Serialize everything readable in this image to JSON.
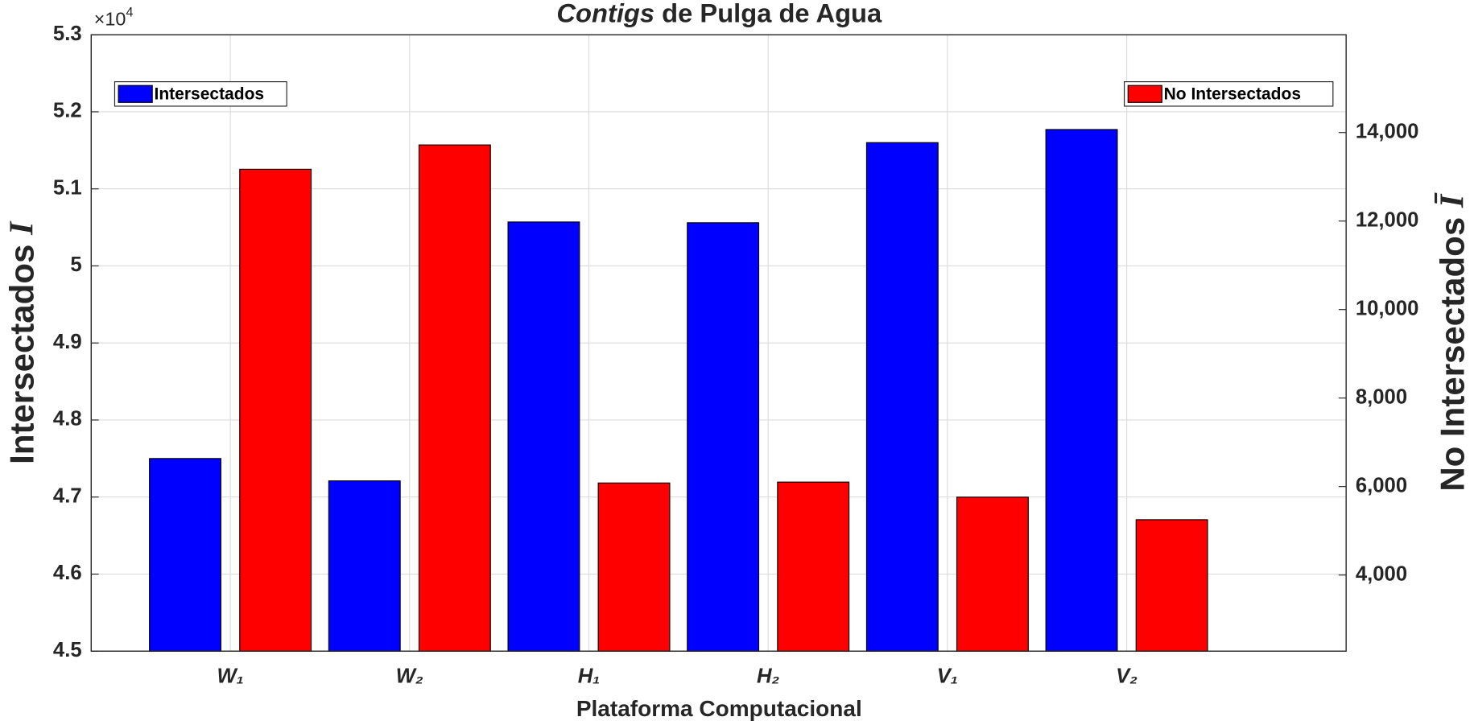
{
  "chart_data": {
    "type": "bar",
    "title_emphasis": "Contigs",
    "title": "de Pulga de Agua",
    "x_label": "Plataforma Computacional",
    "y_label": "Intersectados",
    "y_symbol": "I",
    "y2_label": "No Intersectados",
    "y2_symbol": "Ī",
    "y_exponent": "×10",
    "y_exponent_power": "4",
    "categories": [
      "W₁",
      "W₂",
      "H₁",
      "H₂",
      "V₁",
      "V₂"
    ],
    "series": [
      {
        "name": "Intersectados",
        "color": "#0000ff",
        "values": [
          47500,
          47210,
          50570,
          50560,
          51600,
          51770
        ]
      },
      {
        "name": "No Intersectados",
        "color": "#ff0000",
        "axis": "y2",
        "values": [
          13170,
          13720,
          6080,
          6100,
          5760,
          5250
        ]
      }
    ],
    "ylim": [
      45000,
      53000
    ],
    "yticks": [
      {
        "value": 45000,
        "label": "4.5"
      },
      {
        "value": 46000,
        "label": "4.6"
      },
      {
        "value": 47000,
        "label": "4.7"
      },
      {
        "value": 48000,
        "label": "4.8"
      },
      {
        "value": 49000,
        "label": "4.9"
      },
      {
        "value": 50000,
        "label": "5"
      },
      {
        "value": 51000,
        "label": "5.1"
      },
      {
        "value": 52000,
        "label": "5.2"
      },
      {
        "value": 53000,
        "label": "5.3"
      }
    ],
    "y2lim": [
      2280,
      16210
    ],
    "y2ticks": [
      {
        "value": 4000,
        "label": "4,000"
      },
      {
        "value": 6000,
        "label": "6,000"
      },
      {
        "value": 8000,
        "label": "8,000"
      },
      {
        "value": 10000,
        "label": "10,000"
      },
      {
        "value": 12000,
        "label": "12,000"
      },
      {
        "value": 14000,
        "label": "14,000"
      }
    ],
    "grid": true
  }
}
